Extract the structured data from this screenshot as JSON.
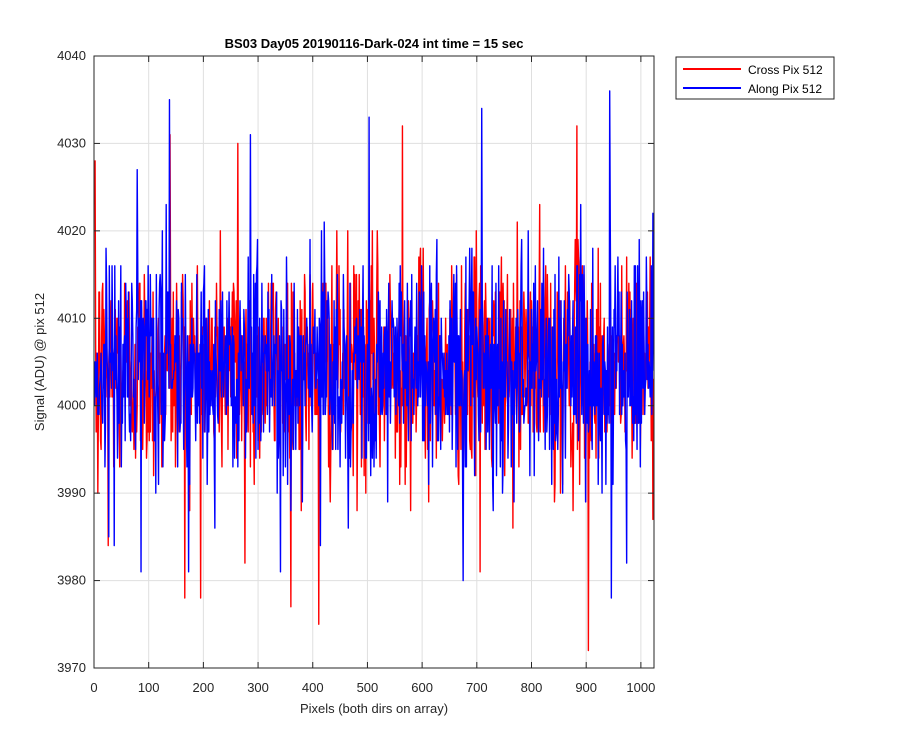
{
  "chart_data": {
    "type": "line",
    "title": "BS03 Day05 20190116-Dark-024 int time = 15 sec",
    "xlabel": "Pixels (both dirs on array)",
    "ylabel": "Signal (ADU) @ pix 512",
    "xlim": [
      0,
      1024
    ],
    "ylim": [
      3970,
      4040
    ],
    "xticks": [
      0,
      100,
      200,
      300,
      400,
      500,
      600,
      700,
      800,
      900,
      1000
    ],
    "yticks": [
      3970,
      3980,
      3990,
      4000,
      4010,
      4020,
      4030,
      4040
    ],
    "grid": true,
    "legend_position": "outside top-right",
    "noise": {
      "mean": 4004.5,
      "std": 6.5,
      "n_points": 1024
    },
    "series": [
      {
        "name": "Cross Pix 512",
        "color": "#ff0000",
        "notable_points": [
          {
            "x": 1,
            "y": 4028
          },
          {
            "x": 6,
            "y": 3990
          },
          {
            "x": 25,
            "y": 3984
          },
          {
            "x": 138,
            "y": 4031
          },
          {
            "x": 165,
            "y": 3978
          },
          {
            "x": 262,
            "y": 4030
          },
          {
            "x": 275,
            "y": 3982
          },
          {
            "x": 410,
            "y": 3975
          },
          {
            "x": 563,
            "y": 4032
          },
          {
            "x": 705,
            "y": 3981
          },
          {
            "x": 903,
            "y": 3972
          },
          {
            "x": 882,
            "y": 4032
          }
        ]
      },
      {
        "name": "Along Pix 512",
        "color": "#0000ff",
        "notable_points": [
          {
            "x": 85,
            "y": 3981
          },
          {
            "x": 137,
            "y": 4035
          },
          {
            "x": 285,
            "y": 4031
          },
          {
            "x": 340,
            "y": 3981
          },
          {
            "x": 413,
            "y": 3984
          },
          {
            "x": 502,
            "y": 4033
          },
          {
            "x": 674,
            "y": 3980
          },
          {
            "x": 708,
            "y": 4034
          },
          {
            "x": 942,
            "y": 4036
          },
          {
            "x": 945,
            "y": 3978
          },
          {
            "x": 973,
            "y": 3982
          }
        ]
      }
    ]
  }
}
